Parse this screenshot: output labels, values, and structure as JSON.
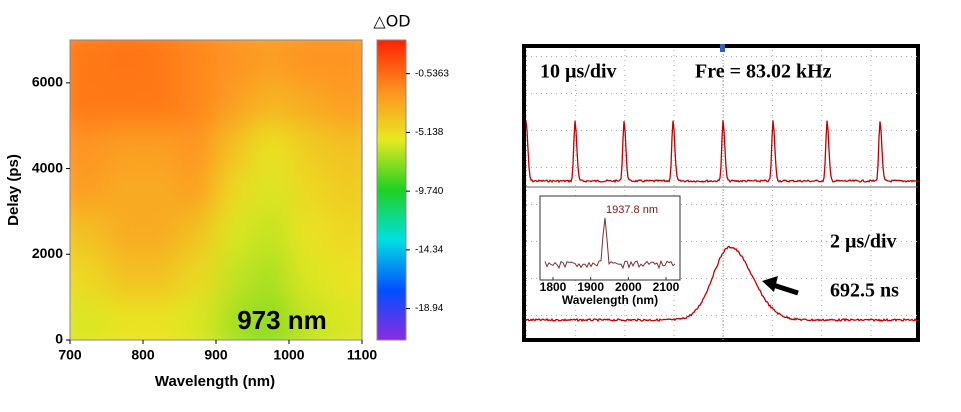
{
  "chart_data": [
    {
      "type": "heatmap",
      "xlabel": "Wavelength (nm)",
      "ylabel": "Delay (ps)",
      "xlim": [
        700,
        1100
      ],
      "xticks": [
        700,
        800,
        900,
        1000,
        1100
      ],
      "ylim": [
        0,
        7000
      ],
      "yticks": [
        0,
        2000,
        4000,
        6000
      ],
      "x": [
        725,
        775,
        825,
        875,
        925,
        975,
        1025,
        1075
      ],
      "y": [
        500,
        1500,
        2500,
        3500,
        4500,
        5500,
        6500
      ],
      "z": [
        [
          -6,
          -5.5,
          -5.5,
          -6,
          -7,
          -7.5,
          -6.5,
          -6
        ],
        [
          -5,
          -4,
          -4,
          -5,
          -6.5,
          -7,
          -6,
          -5.5
        ],
        [
          -4,
          -3,
          -3,
          -4,
          -6,
          -6.5,
          -5.5,
          -5
        ],
        [
          -2.5,
          -3,
          -3,
          -2.5,
          -5,
          -6,
          -5,
          -4.5
        ],
        [
          -2,
          -2.5,
          -2.5,
          -2,
          -4,
          -5.5,
          -4.5,
          -4
        ],
        [
          -1,
          -1,
          -1,
          -1.5,
          -2.5,
          -3.5,
          -3,
          -2.5
        ],
        [
          -1,
          -0.8,
          -1,
          -1.5,
          -2,
          -2.5,
          -2,
          -2
        ]
      ],
      "colorbar_title": "△OD",
      "zlim": [
        -21.4,
        2.1
      ],
      "zticks": [
        -0.5363,
        -5.138,
        {
          "value": -9.74,
          "label": "-9.740"
        },
        -14.34,
        -18.94
      ],
      "colorscale": [
        "#8a2be2",
        "#0050ff",
        "#00e0e0",
        "#20d020",
        "#e8e820",
        "#ff9020",
        "#ff2000"
      ],
      "annotation": "973 nm"
    },
    {
      "type": "oscilloscope",
      "annotations": [
        "10 µs/div",
        "Fre = 83.02 kHz",
        "2 µs/div",
        "692.5 ns"
      ],
      "trace_color": "#c00000",
      "inset": {
        "xlabel": "Wavelength (nm)",
        "xlim": [
          1800,
          2100
        ],
        "xticks": [
          1800,
          1900,
          2000,
          2100
        ],
        "annotation": "1937.8 nm"
      }
    }
  ]
}
